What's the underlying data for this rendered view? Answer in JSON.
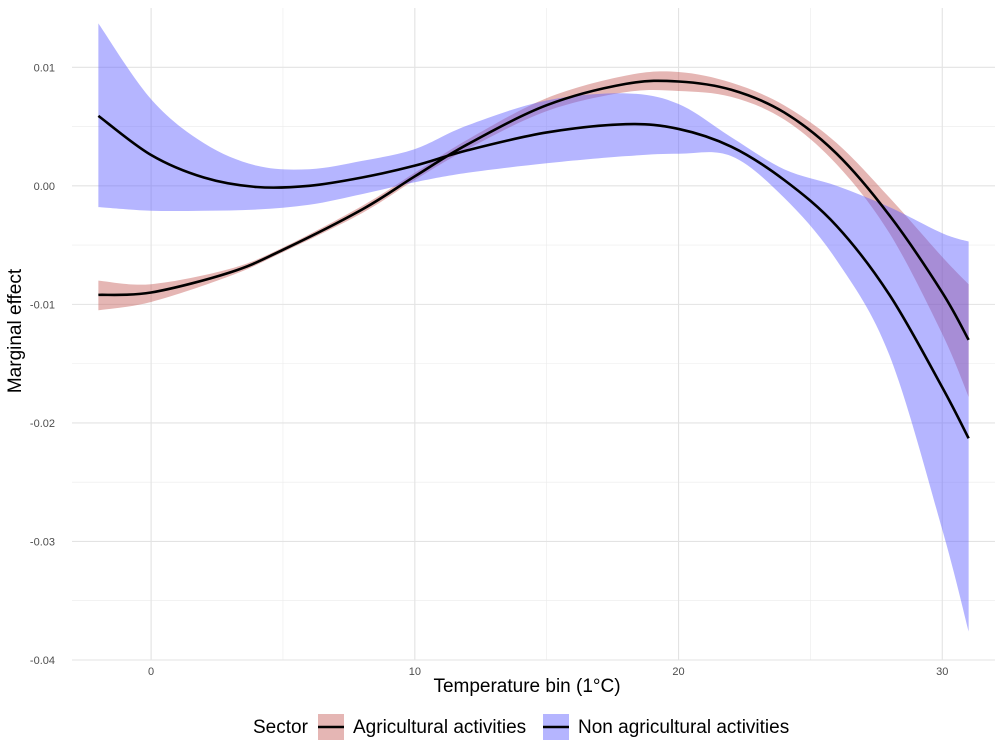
{
  "chart_data": {
    "type": "line",
    "title": "",
    "xlabel": "Temperature bin (1°C)",
    "ylabel": "Marginal effect",
    "xlim": [
      -3,
      32
    ],
    "ylim": [
      -0.04,
      0.015
    ],
    "x_ticks": [
      0,
      10,
      20,
      30
    ],
    "x_tick_labels": [
      "0",
      "10",
      "20",
      "30"
    ],
    "y_ticks": [
      -0.04,
      -0.03,
      -0.02,
      -0.01,
      0.0,
      0.01
    ],
    "y_tick_labels": [
      "-0.04",
      "-0.03",
      "-0.02",
      "-0.01",
      "0.00",
      "0.01"
    ],
    "grid": true,
    "legend": {
      "title": "Sector",
      "placement": "bottom",
      "entries": [
        "Agricultural activities",
        "Non agricultural activities"
      ]
    },
    "series": [
      {
        "name": "Agricultural activities",
        "band_color": "#c0504d",
        "band_opacity": 0.42,
        "line_color": "#000000",
        "points": [
          {
            "x": -2,
            "y": -0.0092,
            "lo": -0.0105,
            "hi": -0.008
          },
          {
            "x": 0,
            "y": -0.009,
            "lo": -0.0098,
            "hi": -0.0083
          },
          {
            "x": 3,
            "y": -0.0073,
            "lo": -0.0076,
            "hi": -0.007
          },
          {
            "x": 5,
            "y": -0.0054,
            "lo": -0.0056,
            "hi": -0.0052
          },
          {
            "x": 8,
            "y": -0.002,
            "lo": -0.0023,
            "hi": -0.0017
          },
          {
            "x": 10,
            "y": 0.0008,
            "lo": 0.0005,
            "hi": 0.0011
          },
          {
            "x": 12,
            "y": 0.0035,
            "lo": 0.0031,
            "hi": 0.0039
          },
          {
            "x": 15,
            "y": 0.0068,
            "lo": 0.0063,
            "hi": 0.0074
          },
          {
            "x": 18,
            "y": 0.0086,
            "lo": 0.0079,
            "hi": 0.0093
          },
          {
            "x": 20,
            "y": 0.0088,
            "lo": 0.008,
            "hi": 0.0096
          },
          {
            "x": 22,
            "y": 0.0081,
            "lo": 0.0075,
            "hi": 0.0087
          },
          {
            "x": 24,
            "y": 0.0062,
            "lo": 0.0056,
            "hi": 0.0068
          },
          {
            "x": 26,
            "y": 0.0027,
            "lo": 0.0018,
            "hi": 0.0036
          },
          {
            "x": 28,
            "y": -0.0025,
            "lo": -0.004,
            "hi": -0.001
          },
          {
            "x": 30,
            "y": -0.009,
            "lo": -0.0125,
            "hi": -0.006
          },
          {
            "x": 31,
            "y": -0.013,
            "lo": -0.0178,
            "hi": -0.0083
          }
        ]
      },
      {
        "name": "Non agricultural activities",
        "band_color": "#5b5bff",
        "band_opacity": 0.45,
        "line_color": "#000000",
        "points": [
          {
            "x": -2,
            "y": 0.0059,
            "lo": -0.0018,
            "hi": 0.0137
          },
          {
            "x": 0,
            "y": 0.0026,
            "lo": -0.0021,
            "hi": 0.0073
          },
          {
            "x": 2,
            "y": 0.0007,
            "lo": -0.0021,
            "hi": 0.0036
          },
          {
            "x": 4,
            "y": -0.0001,
            "lo": -0.002,
            "hi": 0.0017
          },
          {
            "x": 6,
            "y": 0.0,
            "lo": -0.0016,
            "hi": 0.0014
          },
          {
            "x": 8,
            "y": 0.0007,
            "lo": -0.0007,
            "hi": 0.0021
          },
          {
            "x": 10,
            "y": 0.0017,
            "lo": 0.0003,
            "hi": 0.0031
          },
          {
            "x": 12,
            "y": 0.003,
            "lo": 0.0011,
            "hi": 0.0051
          },
          {
            "x": 15,
            "y": 0.0045,
            "lo": 0.0019,
            "hi": 0.0072
          },
          {
            "x": 18,
            "y": 0.0052,
            "lo": 0.0025,
            "hi": 0.0078
          },
          {
            "x": 20,
            "y": 0.0048,
            "lo": 0.0027,
            "hi": 0.0069
          },
          {
            "x": 22,
            "y": 0.0033,
            "lo": 0.0025,
            "hi": 0.0041
          },
          {
            "x": 24,
            "y": 0.0005,
            "lo": -0.001,
            "hi": 0.0014
          },
          {
            "x": 26,
            "y": -0.0034,
            "lo": -0.0063,
            "hi": 0.0
          },
          {
            "x": 28,
            "y": -0.0092,
            "lo": -0.0143,
            "hi": -0.0018
          },
          {
            "x": 30,
            "y": -0.017,
            "lo": -0.029,
            "hi": -0.004
          },
          {
            "x": 31,
            "y": -0.0213,
            "lo": -0.0376,
            "hi": -0.0047
          }
        ]
      }
    ]
  }
}
